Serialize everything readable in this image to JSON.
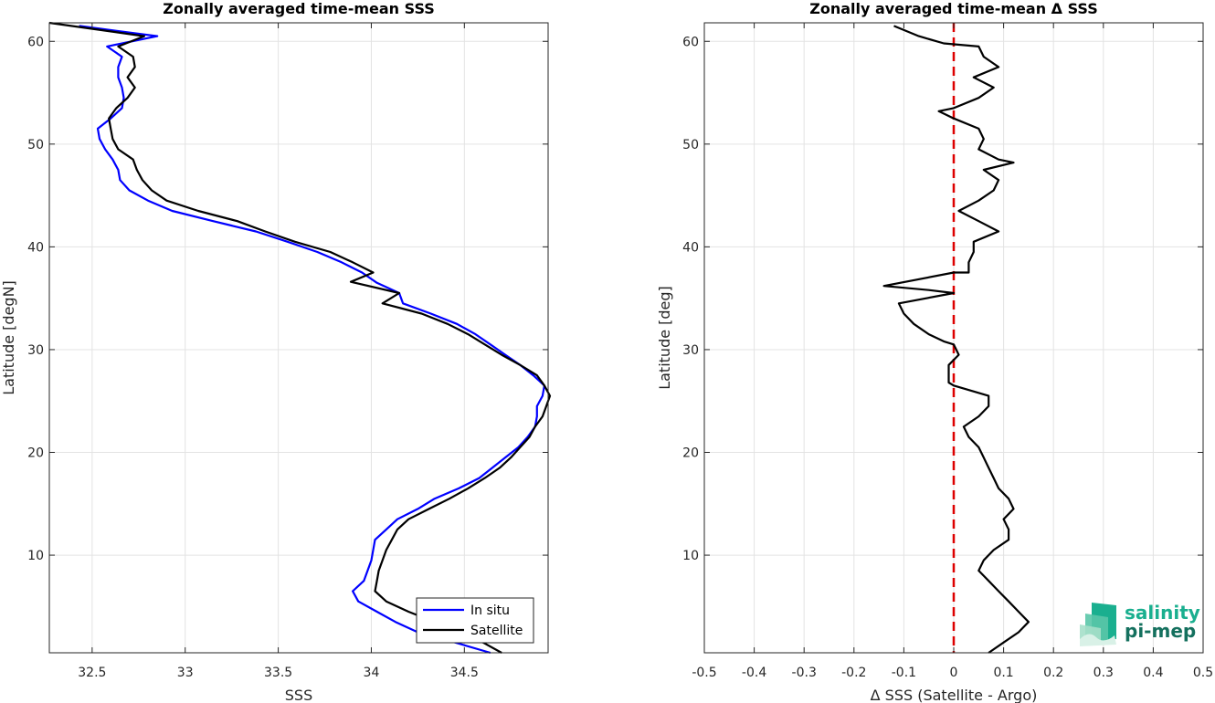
{
  "chart_data": [
    {
      "type": "line",
      "title": "Zonally averaged time-mean SSS",
      "xlabel": "SSS",
      "ylabel": "Latitude [degN]",
      "xlim": [
        32.27,
        34.95
      ],
      "ylim": [
        0.5,
        61.8
      ],
      "xticks": [
        32.5,
        33,
        33.5,
        34,
        34.5
      ],
      "xtick_labels": [
        "32.5",
        "33",
        "33.5",
        "34",
        "34.5"
      ],
      "yticks": [
        10,
        20,
        30,
        40,
        50,
        60
      ],
      "ytick_labels": [
        "10",
        "20",
        "30",
        "40",
        "50",
        "60"
      ],
      "grid": true,
      "legend_position": "bottom-right",
      "series": [
        {
          "name": "In situ",
          "color": "#0000ff",
          "points": [
            [
              32.43,
              61.5
            ],
            [
              32.85,
              60.5
            ],
            [
              32.58,
              59.5
            ],
            [
              32.66,
              58.5
            ],
            [
              32.64,
              57.5
            ],
            [
              32.64,
              56.5
            ],
            [
              32.66,
              55.5
            ],
            [
              32.67,
              54.5
            ],
            [
              32.66,
              53.5
            ],
            [
              32.6,
              52.5
            ],
            [
              32.53,
              51.5
            ],
            [
              32.54,
              50.5
            ],
            [
              32.57,
              49.5
            ],
            [
              32.61,
              48.5
            ],
            [
              32.64,
              47.5
            ],
            [
              32.65,
              46.5
            ],
            [
              32.7,
              45.5
            ],
            [
              32.8,
              44.5
            ],
            [
              32.93,
              43.5
            ],
            [
              33.15,
              42.5
            ],
            [
              33.38,
              41.5
            ],
            [
              33.55,
              40.5
            ],
            [
              33.71,
              39.5
            ],
            [
              33.84,
              38.5
            ],
            [
              33.95,
              37.5
            ],
            [
              34.03,
              36.5
            ],
            [
              34.15,
              35.5
            ],
            [
              34.17,
              34.5
            ],
            [
              34.32,
              33.5
            ],
            [
              34.46,
              32.5
            ],
            [
              34.56,
              31.5
            ],
            [
              34.64,
              30.5
            ],
            [
              34.72,
              29.5
            ],
            [
              34.8,
              28.5
            ],
            [
              34.87,
              27.5
            ],
            [
              34.93,
              26.5
            ],
            [
              34.92,
              25.5
            ],
            [
              34.89,
              24.5
            ],
            [
              34.89,
              23.5
            ],
            [
              34.88,
              22.5
            ],
            [
              34.84,
              21.5
            ],
            [
              34.79,
              20.5
            ],
            [
              34.72,
              19.5
            ],
            [
              34.65,
              18.5
            ],
            [
              34.58,
              17.5
            ],
            [
              34.47,
              16.5
            ],
            [
              34.34,
              15.5
            ],
            [
              34.25,
              14.5
            ],
            [
              34.14,
              13.5
            ],
            [
              34.08,
              12.5
            ],
            [
              34.02,
              11.5
            ],
            [
              34.01,
              10.5
            ],
            [
              34.0,
              9.5
            ],
            [
              33.98,
              8.5
            ],
            [
              33.96,
              7.5
            ],
            [
              33.9,
              6.5
            ],
            [
              33.93,
              5.5
            ],
            [
              34.03,
              4.5
            ],
            [
              34.13,
              3.5
            ],
            [
              34.25,
              2.5
            ],
            [
              34.45,
              1.5
            ],
            [
              34.64,
              0.5
            ]
          ]
        },
        {
          "name": "Satellite",
          "color": "#000000",
          "points": [
            [
              32.27,
              61.8
            ],
            [
              32.78,
              60.5
            ],
            [
              32.64,
              59.5
            ],
            [
              32.72,
              58.5
            ],
            [
              32.73,
              57.5
            ],
            [
              32.69,
              56.5
            ],
            [
              32.73,
              55.5
            ],
            [
              32.69,
              54.5
            ],
            [
              32.63,
              53.5
            ],
            [
              32.59,
              52.5
            ],
            [
              32.6,
              51.5
            ],
            [
              32.61,
              50.5
            ],
            [
              32.64,
              49.5
            ],
            [
              32.72,
              48.5
            ],
            [
              32.74,
              47.5
            ],
            [
              32.77,
              46.5
            ],
            [
              32.82,
              45.5
            ],
            [
              32.9,
              44.5
            ],
            [
              33.07,
              43.5
            ],
            [
              33.28,
              42.5
            ],
            [
              33.43,
              41.5
            ],
            [
              33.59,
              40.5
            ],
            [
              33.78,
              39.5
            ],
            [
              33.9,
              38.5
            ],
            [
              34.01,
              37.5
            ],
            [
              33.89,
              36.6
            ],
            [
              34.15,
              35.5
            ],
            [
              34.06,
              34.5
            ],
            [
              34.27,
              33.5
            ],
            [
              34.41,
              32.5
            ],
            [
              34.52,
              31.5
            ],
            [
              34.61,
              30.5
            ],
            [
              34.7,
              29.5
            ],
            [
              34.8,
              28.5
            ],
            [
              34.89,
              27.5
            ],
            [
              34.93,
              26.5
            ],
            [
              34.96,
              25.5
            ],
            [
              34.94,
              24.5
            ],
            [
              34.92,
              23.5
            ],
            [
              34.88,
              22.5
            ],
            [
              34.85,
              21.5
            ],
            [
              34.8,
              20.5
            ],
            [
              34.75,
              19.5
            ],
            [
              34.69,
              18.5
            ],
            [
              34.61,
              17.5
            ],
            [
              34.52,
              16.5
            ],
            [
              34.42,
              15.5
            ],
            [
              34.31,
              14.5
            ],
            [
              34.2,
              13.5
            ],
            [
              34.14,
              12.5
            ],
            [
              34.11,
              11.5
            ],
            [
              34.08,
              10.5
            ],
            [
              34.06,
              9.5
            ],
            [
              34.04,
              8.5
            ],
            [
              34.03,
              7.5
            ],
            [
              34.02,
              6.5
            ],
            [
              34.08,
              5.5
            ],
            [
              34.2,
              4.5
            ],
            [
              34.34,
              3.5
            ],
            [
              34.46,
              2.5
            ],
            [
              34.6,
              1.5
            ],
            [
              34.7,
              0.5
            ]
          ]
        }
      ]
    },
    {
      "type": "line",
      "title": "Zonally averaged time-mean Δ SSS",
      "xlabel": "Δ SSS (Satellite - Argo)",
      "ylabel": "Latitude [deg]",
      "xlim": [
        -0.5,
        0.5
      ],
      "ylim": [
        0.5,
        61.8
      ],
      "xticks": [
        -0.5,
        -0.4,
        -0.3,
        -0.2,
        -0.1,
        0,
        0.1,
        0.2,
        0.3,
        0.4,
        0.5
      ],
      "xtick_labels": [
        "-0.5",
        "-0.4",
        "-0.3",
        "-0.2",
        "-0.1",
        "0",
        "0.1",
        "0.2",
        "0.3",
        "0.4",
        "0.5"
      ],
      "yticks": [
        10,
        20,
        30,
        40,
        50,
        60
      ],
      "ytick_labels": [
        "10",
        "20",
        "30",
        "40",
        "50",
        "60"
      ],
      "grid": true,
      "zero_line": {
        "x": 0,
        "color": "#dd0000",
        "style": "dashed"
      },
      "series": [
        {
          "name": "",
          "color": "#000000",
          "points": [
            [
              -0.12,
              61.5
            ],
            [
              -0.07,
              60.5
            ],
            [
              -0.02,
              59.8
            ],
            [
              0.05,
              59.5
            ],
            [
              0.06,
              58.5
            ],
            [
              0.09,
              57.5
            ],
            [
              0.04,
              56.5
            ],
            [
              0.08,
              55.5
            ],
            [
              0.05,
              54.5
            ],
            [
              0.0,
              53.5
            ],
            [
              -0.03,
              53.2
            ],
            [
              0.0,
              52.5
            ],
            [
              0.05,
              51.5
            ],
            [
              0.06,
              50.5
            ],
            [
              0.05,
              49.5
            ],
            [
              0.09,
              48.5
            ],
            [
              0.12,
              48.2
            ],
            [
              0.06,
              47.5
            ],
            [
              0.09,
              46.5
            ],
            [
              0.08,
              45.5
            ],
            [
              0.05,
              44.5
            ],
            [
              0.01,
              43.5
            ],
            [
              0.05,
              42.5
            ],
            [
              0.09,
              41.5
            ],
            [
              0.04,
              40.5
            ],
            [
              0.04,
              39.5
            ],
            [
              0.03,
              38.5
            ],
            [
              0.03,
              37.5
            ],
            [
              0.0,
              37.5
            ],
            [
              -0.14,
              36.2
            ],
            [
              -0.05,
              35.8
            ],
            [
              0.0,
              35.5
            ],
            [
              -0.11,
              34.5
            ],
            [
              -0.1,
              33.5
            ],
            [
              -0.08,
              32.5
            ],
            [
              -0.05,
              31.5
            ],
            [
              -0.02,
              30.8
            ],
            [
              0.0,
              30.5
            ],
            [
              0.01,
              29.5
            ],
            [
              -0.01,
              28.5
            ],
            [
              -0.01,
              27.5
            ],
            [
              -0.01,
              26.8
            ],
            [
              0.0,
              26.5
            ],
            [
              0.07,
              25.5
            ],
            [
              0.07,
              24.5
            ],
            [
              0.05,
              23.5
            ],
            [
              0.02,
              22.5
            ],
            [
              0.03,
              21.5
            ],
            [
              0.05,
              20.5
            ],
            [
              0.06,
              19.5
            ],
            [
              0.07,
              18.5
            ],
            [
              0.08,
              17.5
            ],
            [
              0.09,
              16.5
            ],
            [
              0.11,
              15.5
            ],
            [
              0.12,
              14.5
            ],
            [
              0.1,
              13.5
            ],
            [
              0.11,
              12.5
            ],
            [
              0.11,
              11.5
            ],
            [
              0.08,
              10.5
            ],
            [
              0.06,
              9.5
            ],
            [
              0.05,
              8.5
            ],
            [
              0.07,
              7.5
            ],
            [
              0.09,
              6.5
            ],
            [
              0.11,
              5.5
            ],
            [
              0.13,
              4.5
            ],
            [
              0.15,
              3.5
            ],
            [
              0.13,
              2.5
            ],
            [
              0.1,
              1.5
            ],
            [
              0.07,
              0.5
            ]
          ]
        }
      ]
    }
  ],
  "legend": {
    "items": [
      "In situ",
      "Satellite"
    ]
  },
  "logo": {
    "line1": "salinity",
    "line2": "pi-mep",
    "color1": "#1aaf8f",
    "color2": "#14705e"
  }
}
